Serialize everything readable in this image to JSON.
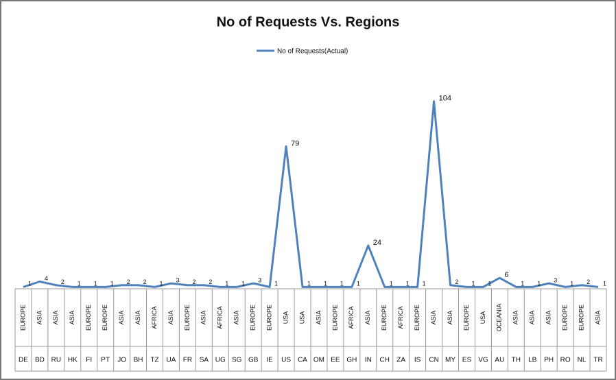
{
  "chart_data": {
    "type": "line",
    "title": "No of Requests Vs. Regions",
    "categories": [
      "DE",
      "BD",
      "RU",
      "HK",
      "FI",
      "PT",
      "JO",
      "BH",
      "TZ",
      "UA",
      "FR",
      "SA",
      "UG",
      "SG",
      "GB",
      "IE",
      "US",
      "CA",
      "OM",
      "EE",
      "GH",
      "IN",
      "CH",
      "ZA",
      "IS",
      "CN",
      "MY",
      "ES",
      "VG",
      "AU",
      "TH",
      "LB",
      "PH",
      "RO",
      "NL",
      "TR"
    ],
    "regions": [
      "EUROPE",
      "ASIA",
      "ASIA",
      "ASIA",
      "EUROPE",
      "EUROPE",
      "ASIA",
      "ASIA",
      "AFRICA",
      "ASIA",
      "EUROPE",
      "ASIA",
      "AFRICA",
      "ASIA",
      "EUROPE",
      "EUROPE",
      "USA",
      "USA",
      "ASIA",
      "EUROPE",
      "AFRICA",
      "ASIA",
      "EUROPE",
      "AFRICA",
      "EUROPE",
      "ASIA",
      "ASIA",
      "EUROPE",
      "USA",
      "OCEANIA",
      "ASIA",
      "ASIA",
      "ASIA",
      "EUROPE",
      "EUROPE",
      "ASIA"
    ],
    "series": [
      {
        "name": "No of Requests(Actual)",
        "color": "#4f81bd",
        "values": [
          1,
          4,
          2,
          1,
          1,
          1,
          2,
          2,
          1,
          3,
          2,
          2,
          1,
          1,
          3,
          1,
          79,
          1,
          1,
          1,
          1,
          24,
          1,
          1,
          1,
          104,
          2,
          1,
          1,
          6,
          1,
          1,
          3,
          1,
          2,
          1
        ]
      }
    ],
    "ylim": [
      0,
      110
    ],
    "legend": "top"
  }
}
